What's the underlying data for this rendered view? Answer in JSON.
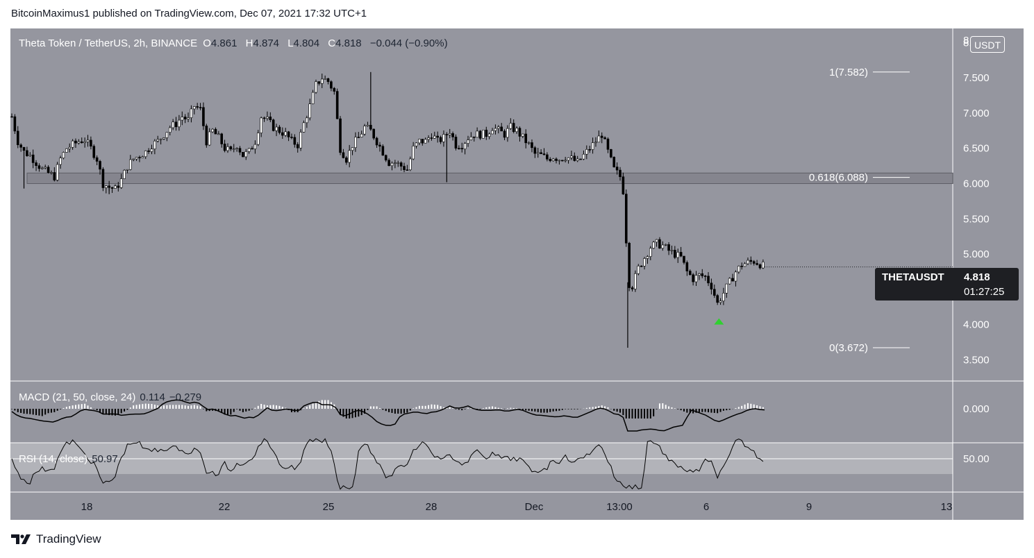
{
  "publisher": "BitcoinMaximus1 published on TradingView.com, Dec 07, 2021 17:32 UTC+1",
  "brand": "TradingView",
  "colors": {
    "background": "#95969f",
    "up": "#ffffff",
    "down": "#000000",
    "marker": "#2fd12f",
    "text": "#ffffff"
  },
  "legend": {
    "symbol": "Theta Token / TetherUS, 2h, BINANCE",
    "o_label": "O",
    "o": "4.861",
    "h_label": "H",
    "h": "4.874",
    "l_label": "L",
    "l": "4.804",
    "c_label": "C",
    "c": "4.818",
    "change": "−0.044 (−0.90%)"
  },
  "price_axis": {
    "unit": "USDT",
    "top_tick": "8",
    "ticks": [
      "8.000",
      "7.500",
      "7.000",
      "6.500",
      "6.000",
      "5.500",
      "5.000",
      "4.500",
      "4.000",
      "3.500"
    ]
  },
  "price_tag": {
    "symbol": "THETAUSDT",
    "price": "4.818",
    "countdown": "01:27:25"
  },
  "fib": [
    {
      "label": "1(7.582)",
      "value": 7.582
    },
    {
      "label": "0.618(6.088)",
      "value": 6.088
    },
    {
      "label": "0(3.672)",
      "value": 3.672
    }
  ],
  "time_axis": {
    "ticks": [
      "18",
      "22",
      "25",
      "28",
      "Dec",
      "13:00",
      "6",
      "9",
      "13"
    ]
  },
  "macd": {
    "label": "MACD (21, 50, close, 24)",
    "v1": "0.114",
    "v2": "−0.279",
    "axis_tick": "0.000"
  },
  "rsi": {
    "label": "RSI (14, close)",
    "value": "50.97",
    "axis_tick": "50.00"
  },
  "chart_data": {
    "type": "candlestick",
    "title": "Theta Token / TetherUS, 2h, BINANCE",
    "ylim": [
      3.2,
      8.2
    ],
    "y_ticks": [
      3.5,
      4.0,
      4.5,
      5.0,
      5.5,
      6.0,
      6.5,
      7.0,
      7.5,
      8.0
    ],
    "support_zone": [
      6.0,
      6.15
    ],
    "fib_levels": [
      7.582,
      6.088,
      3.672
    ],
    "last_price": 4.818,
    "price_path": [
      [
        0,
        6.95
      ],
      [
        8,
        6.6
      ],
      [
        16,
        6.45
      ],
      [
        24,
        6.4
      ],
      [
        32,
        6.3
      ],
      [
        40,
        6.2
      ],
      [
        48,
        6.15
      ],
      [
        56,
        6.1
      ],
      [
        64,
        6.35
      ],
      [
        72,
        6.5
      ],
      [
        80,
        6.55
      ],
      [
        88,
        6.6
      ],
      [
        96,
        6.62
      ],
      [
        104,
        6.5
      ],
      [
        112,
        6.35
      ],
      [
        120,
        6.0
      ],
      [
        128,
        5.95
      ],
      [
        136,
        5.92
      ],
      [
        144,
        6.05
      ],
      [
        152,
        6.25
      ],
      [
        160,
        6.35
      ],
      [
        168,
        6.4
      ],
      [
        176,
        6.45
      ],
      [
        184,
        6.55
      ],
      [
        192,
        6.6
      ],
      [
        200,
        6.7
      ],
      [
        208,
        6.8
      ],
      [
        216,
        6.85
      ],
      [
        224,
        6.95
      ],
      [
        232,
        6.9
      ],
      [
        240,
        7.1
      ],
      [
        248,
        7.05
      ],
      [
        256,
        6.6
      ],
      [
        264,
        6.75
      ],
      [
        272,
        6.65
      ],
      [
        280,
        6.5
      ],
      [
        288,
        6.45
      ],
      [
        296,
        6.55
      ],
      [
        304,
        6.4
      ],
      [
        312,
        6.45
      ],
      [
        320,
        6.6
      ],
      [
        328,
        6.95
      ],
      [
        336,
        6.9
      ],
      [
        344,
        6.8
      ],
      [
        352,
        6.75
      ],
      [
        360,
        6.7
      ],
      [
        368,
        6.6
      ],
      [
        376,
        6.55
      ],
      [
        384,
        6.85
      ],
      [
        392,
        7.1
      ],
      [
        400,
        7.4
      ],
      [
        408,
        7.5
      ],
      [
        416,
        7.45
      ],
      [
        424,
        7.3
      ],
      [
        432,
        6.5
      ],
      [
        440,
        6.35
      ],
      [
        448,
        6.55
      ],
      [
        456,
        6.65
      ],
      [
        464,
        6.8
      ],
      [
        472,
        6.75
      ],
      [
        480,
        6.6
      ],
      [
        488,
        6.45
      ],
      [
        496,
        6.3
      ],
      [
        504,
        6.3
      ],
      [
        512,
        6.25
      ],
      [
        520,
        6.2
      ],
      [
        528,
        6.5
      ],
      [
        536,
        6.6
      ],
      [
        544,
        6.6
      ],
      [
        552,
        6.7
      ],
      [
        560,
        6.6
      ],
      [
        568,
        6.65
      ],
      [
        576,
        6.75
      ],
      [
        584,
        6.55
      ],
      [
        592,
        6.55
      ],
      [
        600,
        6.65
      ],
      [
        608,
        6.7
      ],
      [
        616,
        6.7
      ],
      [
        624,
        6.7
      ],
      [
        632,
        6.8
      ],
      [
        640,
        6.75
      ],
      [
        648,
        6.7
      ],
      [
        656,
        6.8
      ],
      [
        664,
        6.75
      ],
      [
        672,
        6.65
      ],
      [
        680,
        6.55
      ],
      [
        688,
        6.42
      ],
      [
        696,
        6.4
      ],
      [
        704,
        6.35
      ],
      [
        712,
        6.38
      ],
      [
        720,
        6.35
      ],
      [
        728,
        6.38
      ],
      [
        736,
        6.35
      ],
      [
        744,
        6.3
      ],
      [
        752,
        6.4
      ],
      [
        760,
        6.5
      ],
      [
        768,
        6.6
      ],
      [
        776,
        6.7
      ],
      [
        784,
        6.45
      ],
      [
        792,
        6.2
      ],
      [
        800,
        6.1
      ],
      [
        806,
        5.8
      ],
      [
        810,
        4.6
      ],
      [
        816,
        4.55
      ],
      [
        824,
        4.8
      ],
      [
        832,
        4.95
      ],
      [
        840,
        5.1
      ],
      [
        848,
        5.15
      ],
      [
        856,
        5.12
      ],
      [
        864,
        5.05
      ],
      [
        872,
        5.0
      ],
      [
        880,
        4.95
      ],
      [
        888,
        4.75
      ],
      [
        896,
        4.65
      ],
      [
        904,
        4.7
      ],
      [
        912,
        4.68
      ],
      [
        920,
        4.55
      ],
      [
        928,
        4.3
      ],
      [
        936,
        4.45
      ],
      [
        944,
        4.6
      ],
      [
        952,
        4.75
      ],
      [
        960,
        4.85
      ],
      [
        968,
        4.88
      ],
      [
        976,
        4.9
      ],
      [
        984,
        4.86
      ],
      [
        990,
        4.82
      ]
    ],
    "wicks": [
      {
        "x": 810,
        "low": 3.672
      },
      {
        "x": 16,
        "low": 5.93
      },
      {
        "x": 128,
        "low": 5.85
      },
      {
        "x": 472,
        "high": 7.582
      },
      {
        "x": 572,
        "low": 6.02
      }
    ],
    "markers": [
      {
        "x": 930,
        "value": 4.05,
        "shape": "triangle-up",
        "color": "#2fd12f"
      }
    ],
    "macd_zero": 0.0,
    "rsi_mid": 50.0
  }
}
